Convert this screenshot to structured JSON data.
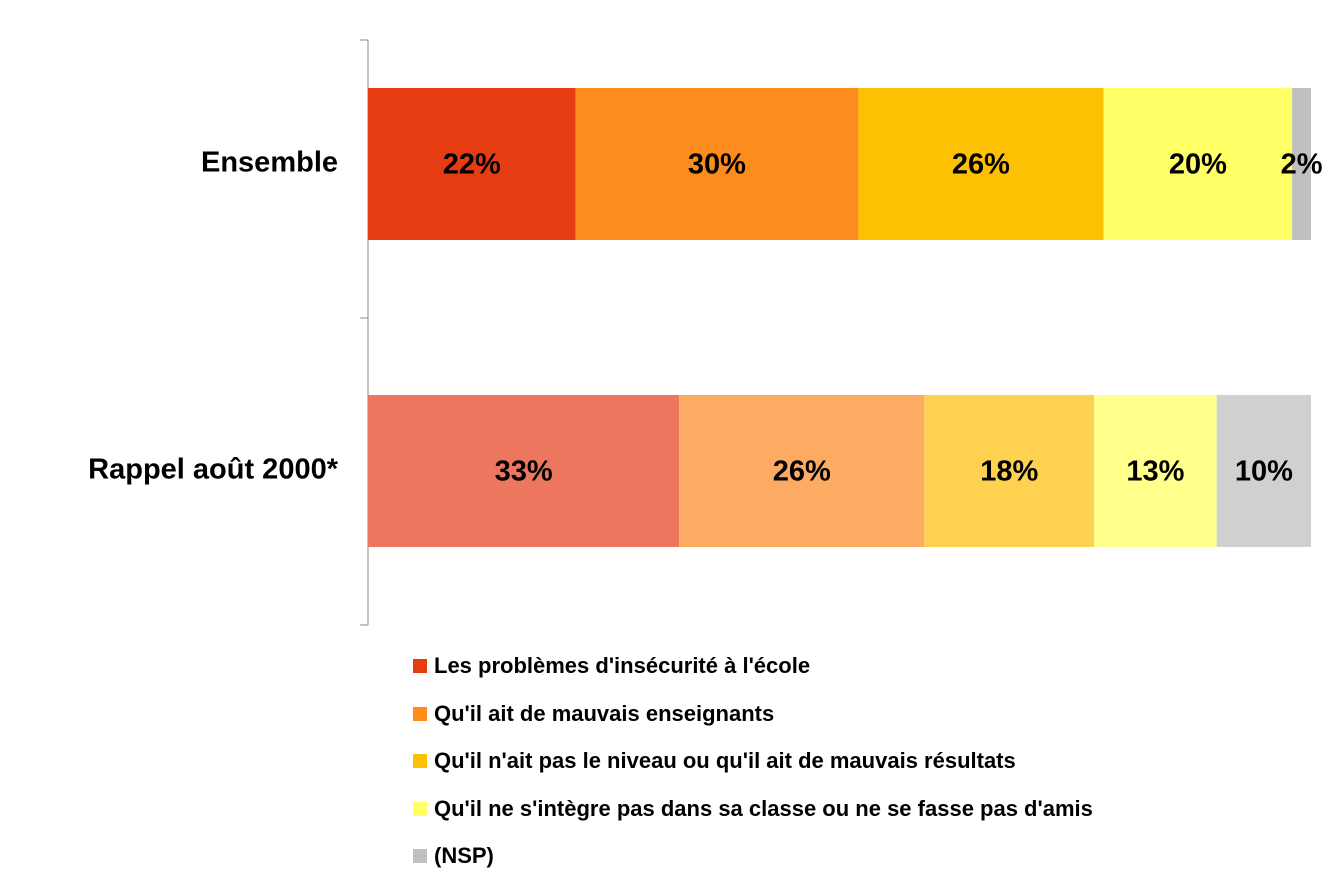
{
  "chart_data": {
    "type": "stacked-bar-horizontal",
    "categories": [
      "Ensemble",
      "Rappel août  2000*"
    ],
    "xlim": [
      0,
      100
    ],
    "series": [
      {
        "name": "Les problèmes d'insécurité à l'école",
        "color": "#e53c12",
        "colors": [
          "#e53c12",
          "#ed775e"
        ],
        "values": [
          22,
          33
        ],
        "value_labels": [
          "22%",
          "33%"
        ]
      },
      {
        "name": "Qu'il ait de mauvais enseignants",
        "color": "#fd8c1c",
        "colors": [
          "#fd8c1c",
          "#fdab62"
        ],
        "values": [
          30,
          26
        ],
        "value_labels": [
          "30%",
          "26%"
        ]
      },
      {
        "name": "Qu'il n'ait pas le niveau ou qu'il ait de mauvais résultats",
        "color": "#fec002",
        "colors": [
          "#fec002",
          "#fed250"
        ],
        "values": [
          26,
          18
        ],
        "value_labels": [
          "26%",
          "18%"
        ]
      },
      {
        "name": "Qu'il ne s'intègre pas dans sa classe ou ne se fasse pas d'amis",
        "color": "#ffff66",
        "colors": [
          "#ffff66",
          "#ffff8c"
        ],
        "values": [
          20,
          13
        ],
        "value_labels": [
          "20%",
          "13%"
        ]
      },
      {
        "name": "(NSP)",
        "color": "#c0c0c0",
        "colors": [
          "#c0c0c0",
          "#d0d0d0"
        ],
        "values": [
          2,
          10
        ],
        "value_labels": [
          "2%",
          "10%"
        ]
      }
    ]
  }
}
